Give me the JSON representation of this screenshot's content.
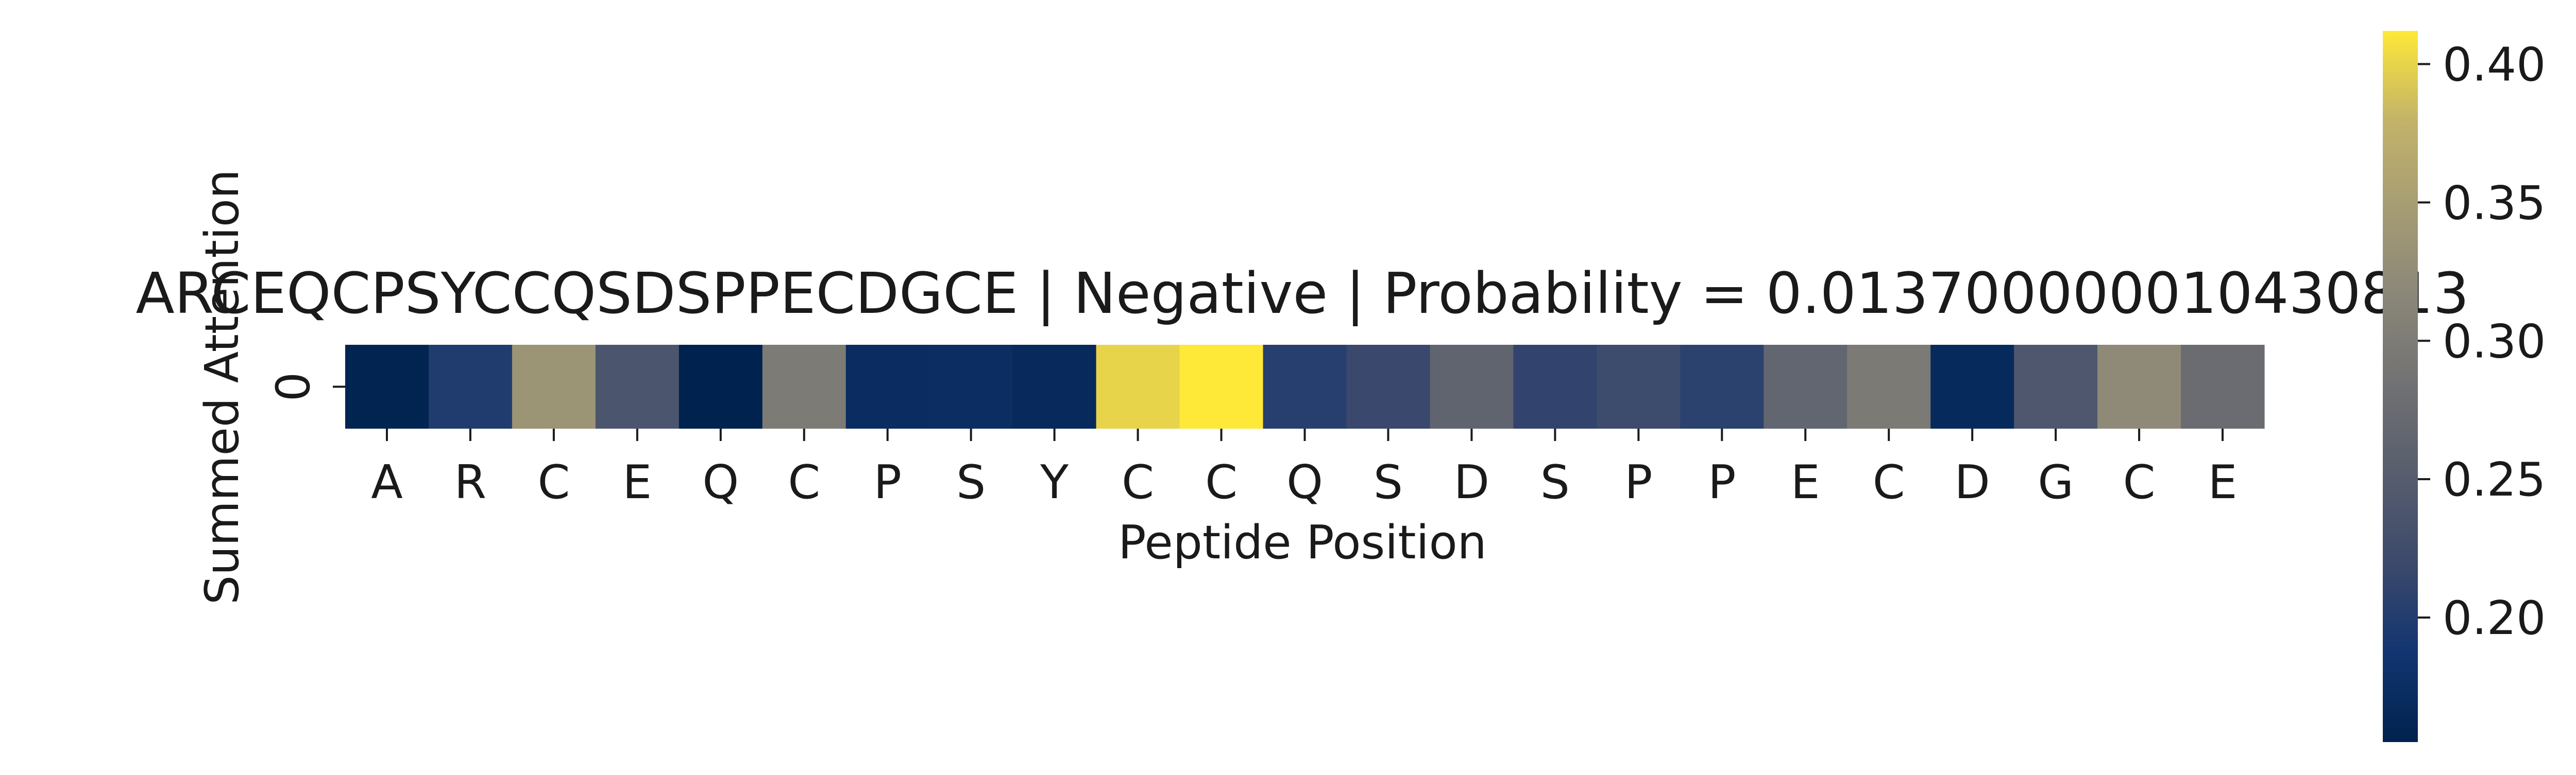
{
  "chart_data": {
    "type": "heatmap",
    "title": "ARCEQCPSYCCQSDSPPECDGCE | Negative | Probability = 0.013700000010430813",
    "xlabel": "Peptide Position",
    "ylabel": "Summed Attention",
    "x_tick_labels": [
      "A",
      "R",
      "C",
      "E",
      "Q",
      "C",
      "P",
      "S",
      "Y",
      "C",
      "C",
      "Q",
      "S",
      "D",
      "S",
      "P",
      "P",
      "E",
      "C",
      "D",
      "G",
      "C",
      "E"
    ],
    "y_tick_labels": [
      "0"
    ],
    "values": [
      [
        0.158,
        0.198,
        0.336,
        0.238,
        0.155,
        0.299,
        0.172,
        0.174,
        0.167,
        0.4,
        0.412,
        0.203,
        0.218,
        0.262,
        0.212,
        0.222,
        0.207,
        0.266,
        0.298,
        0.168,
        0.241,
        0.322,
        0.276
      ]
    ],
    "colormap": "cividis",
    "colorbar": {
      "range": [
        0.155,
        0.412
      ],
      "ticks": [
        0.2,
        0.25,
        0.3,
        0.35,
        0.4
      ],
      "tick_labels": [
        "0.20",
        "0.25",
        "0.30",
        "0.35",
        "0.40"
      ]
    }
  }
}
